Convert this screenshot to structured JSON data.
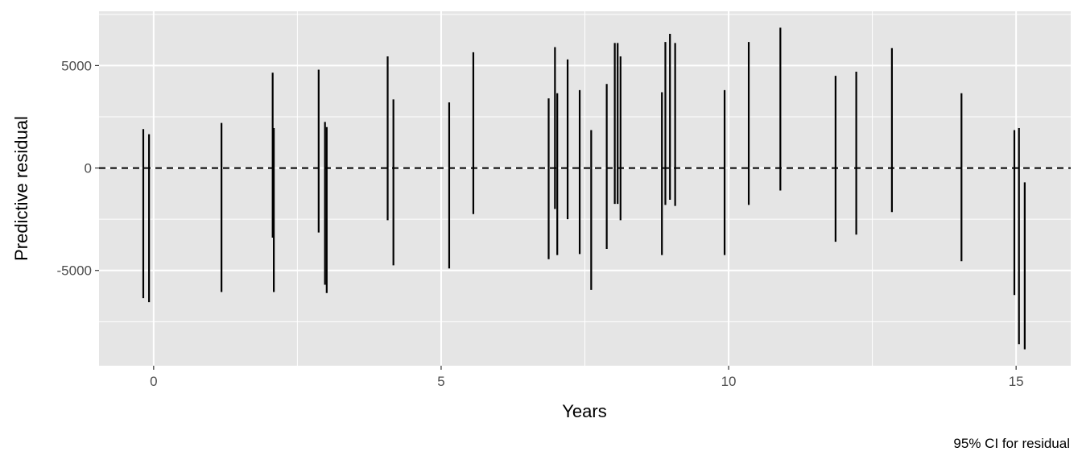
{
  "chart_data": {
    "type": "errorbar",
    "xlabel": "Years",
    "ylabel": "Predictive residual",
    "caption": "95% CI for residual",
    "xlim": [
      -0.95,
      15.95
    ],
    "ylim": [
      -9650,
      7650
    ],
    "x_ticks": [
      0,
      5,
      10,
      15
    ],
    "x_tick_labels": [
      "0",
      "5",
      "10",
      "15"
    ],
    "y_ticks": [
      -5000,
      0,
      5000
    ],
    "y_tick_labels": [
      "-5000",
      "0",
      "5000"
    ],
    "x_minor_ticks": [
      2.5,
      7.5,
      12.5
    ],
    "y_minor_ticks": [
      -7500,
      -2500,
      2500,
      7500
    ],
    "reference_line": {
      "y": 0,
      "style": "dashed"
    },
    "grid": true,
    "colors": {
      "panel": "#e5e5e5",
      "grid": "#ffffff",
      "bars": "#000000"
    },
    "intervals": [
      {
        "x": -0.18,
        "low": -6350,
        "high": 1900
      },
      {
        "x": -0.08,
        "low": -6550,
        "high": 1650
      },
      {
        "x": 1.18,
        "low": -6050,
        "high": 2200
      },
      {
        "x": 2.07,
        "low": -3400,
        "high": 4650
      },
      {
        "x": 2.09,
        "low": -6050,
        "high": 1950
      },
      {
        "x": 2.87,
        "low": -3150,
        "high": 4800
      },
      {
        "x": 2.98,
        "low": -5700,
        "high": 2250
      },
      {
        "x": 3.01,
        "low": -6100,
        "high": 2000
      },
      {
        "x": 4.07,
        "low": -2550,
        "high": 5450
      },
      {
        "x": 4.17,
        "low": -4750,
        "high": 3350
      },
      {
        "x": 5.14,
        "low": -4900,
        "high": 3200
      },
      {
        "x": 5.56,
        "low": -2250,
        "high": 5650
      },
      {
        "x": 6.87,
        "low": -4450,
        "high": 3400
      },
      {
        "x": 6.98,
        "low": -2000,
        "high": 5900
      },
      {
        "x": 7.02,
        "low": -4250,
        "high": 3650
      },
      {
        "x": 7.2,
        "low": -2500,
        "high": 5300
      },
      {
        "x": 7.41,
        "low": -4200,
        "high": 3800
      },
      {
        "x": 7.61,
        "low": -5950,
        "high": 1850
      },
      {
        "x": 7.88,
        "low": -3950,
        "high": 4100
      },
      {
        "x": 8.02,
        "low": -1750,
        "high": 6100
      },
      {
        "x": 8.07,
        "low": -1750,
        "high": 6100
      },
      {
        "x": 8.12,
        "low": -2550,
        "high": 5450
      },
      {
        "x": 8.84,
        "low": -4250,
        "high": 3700
      },
      {
        "x": 8.9,
        "low": -1800,
        "high": 6150
      },
      {
        "x": 8.98,
        "low": -1550,
        "high": 6550
      },
      {
        "x": 9.07,
        "low": -1850,
        "high": 6100
      },
      {
        "x": 9.93,
        "low": -4250,
        "high": 3800
      },
      {
        "x": 10.35,
        "low": -1800,
        "high": 6150
      },
      {
        "x": 10.9,
        "low": -1100,
        "high": 6850
      },
      {
        "x": 11.86,
        "low": -3600,
        "high": 4500
      },
      {
        "x": 12.22,
        "low": -3250,
        "high": 4700
      },
      {
        "x": 12.84,
        "low": -2150,
        "high": 5850
      },
      {
        "x": 14.05,
        "low": -4550,
        "high": 3650
      },
      {
        "x": 14.97,
        "low": -6200,
        "high": 1850
      },
      {
        "x": 15.05,
        "low": -8600,
        "high": 1950
      },
      {
        "x": 15.15,
        "low": -8850,
        "high": -700
      }
    ]
  }
}
